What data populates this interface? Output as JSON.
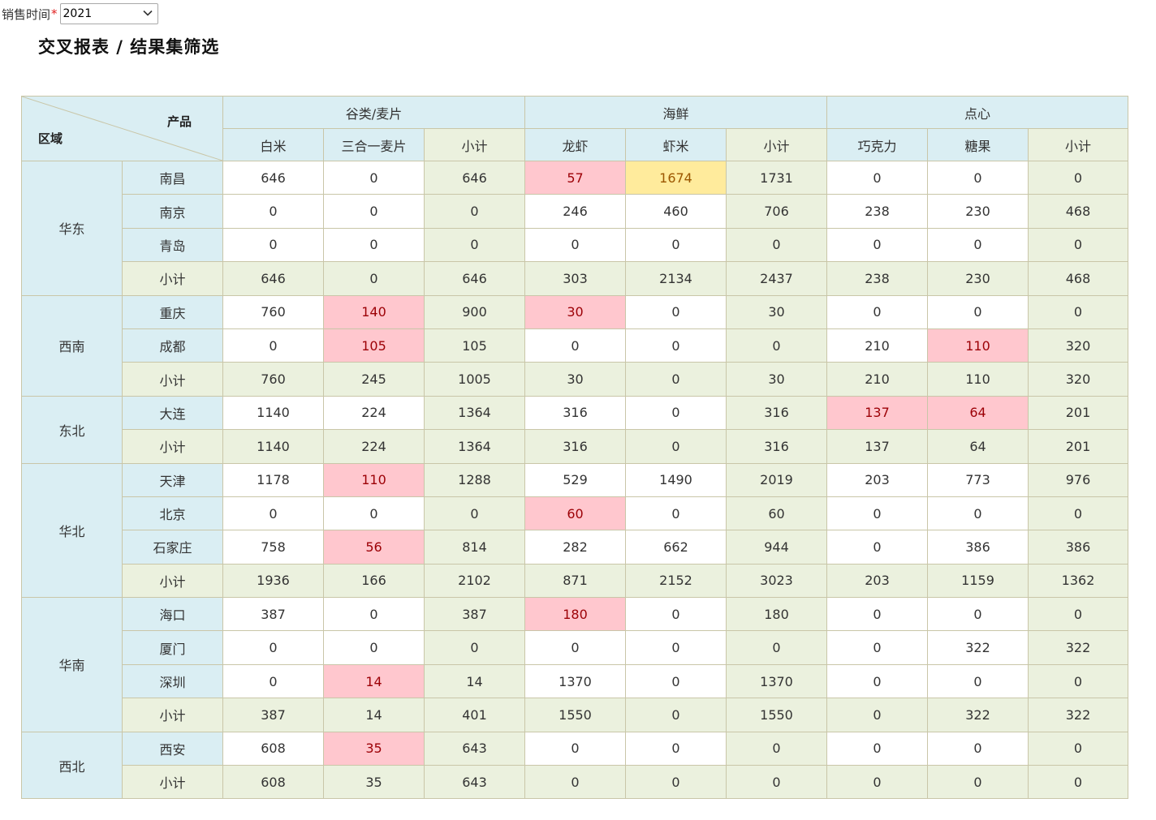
{
  "filter": {
    "label": "销售时间",
    "required_mark": "*",
    "value": "2021"
  },
  "title": "交叉报表 / 结果集筛选",
  "colors": {
    "header_bg": "#daeef3",
    "subtotal_bg": "#ebf1de",
    "highlight_pink": "#ffc7ce",
    "highlight_yellow": "#ffeb9c",
    "border": "#c9c6a8"
  },
  "table": {
    "corner": {
      "product_label": "产品",
      "region_label": "区域"
    },
    "categories": [
      {
        "name": "谷类/麦片",
        "products": [
          "白米",
          "三合一麦片",
          "小计"
        ]
      },
      {
        "name": "海鲜",
        "products": [
          "龙虾",
          "虾米",
          "小计"
        ]
      },
      {
        "name": "点心",
        "products": [
          "巧克力",
          "糖果",
          "小计"
        ]
      }
    ],
    "regions": [
      {
        "name": "华东",
        "rows": [
          {
            "city": "南昌",
            "subtotal": false,
            "values": [
              646,
              0,
              646,
              57,
              1674,
              1731,
              0,
              0,
              0
            ],
            "highlights": {
              "3": "pink",
              "4": "yellow"
            }
          },
          {
            "city": "南京",
            "subtotal": false,
            "values": [
              0,
              0,
              0,
              246,
              460,
              706,
              238,
              230,
              468
            ]
          },
          {
            "city": "青岛",
            "subtotal": false,
            "values": [
              0,
              0,
              0,
              0,
              0,
              0,
              0,
              0,
              0
            ]
          },
          {
            "city": "小计",
            "subtotal": true,
            "values": [
              646,
              0,
              646,
              303,
              2134,
              2437,
              238,
              230,
              468
            ]
          }
        ]
      },
      {
        "name": "西南",
        "rows": [
          {
            "city": "重庆",
            "subtotal": false,
            "values": [
              760,
              140,
              900,
              30,
              0,
              30,
              0,
              0,
              0
            ],
            "highlights": {
              "1": "pink",
              "3": "pink"
            }
          },
          {
            "city": "成都",
            "subtotal": false,
            "values": [
              0,
              105,
              105,
              0,
              0,
              0,
              210,
              110,
              320
            ],
            "highlights": {
              "1": "pink",
              "7": "pink"
            }
          },
          {
            "city": "小计",
            "subtotal": true,
            "values": [
              760,
              245,
              1005,
              30,
              0,
              30,
              210,
              110,
              320
            ]
          }
        ]
      },
      {
        "name": "东北",
        "rows": [
          {
            "city": "大连",
            "subtotal": false,
            "values": [
              1140,
              224,
              1364,
              316,
              0,
              316,
              137,
              64,
              201
            ],
            "highlights": {
              "6": "pink",
              "7": "pink"
            }
          },
          {
            "city": "小计",
            "subtotal": true,
            "values": [
              1140,
              224,
              1364,
              316,
              0,
              316,
              137,
              64,
              201
            ]
          }
        ]
      },
      {
        "name": "华北",
        "rows": [
          {
            "city": "天津",
            "subtotal": false,
            "values": [
              1178,
              110,
              1288,
              529,
              1490,
              2019,
              203,
              773,
              976
            ],
            "highlights": {
              "1": "pink"
            }
          },
          {
            "city": "北京",
            "subtotal": false,
            "values": [
              0,
              0,
              0,
              60,
              0,
              60,
              0,
              0,
              0
            ],
            "highlights": {
              "3": "pink"
            }
          },
          {
            "city": "石家庄",
            "subtotal": false,
            "values": [
              758,
              56,
              814,
              282,
              662,
              944,
              0,
              386,
              386
            ],
            "highlights": {
              "1": "pink"
            }
          },
          {
            "city": "小计",
            "subtotal": true,
            "values": [
              1936,
              166,
              2102,
              871,
              2152,
              3023,
              203,
              1159,
              1362
            ]
          }
        ]
      },
      {
        "name": "华南",
        "rows": [
          {
            "city": "海口",
            "subtotal": false,
            "values": [
              387,
              0,
              387,
              180,
              0,
              180,
              0,
              0,
              0
            ],
            "highlights": {
              "3": "pink"
            }
          },
          {
            "city": "厦门",
            "subtotal": false,
            "values": [
              0,
              0,
              0,
              0,
              0,
              0,
              0,
              322,
              322
            ]
          },
          {
            "city": "深圳",
            "subtotal": false,
            "values": [
              0,
              14,
              14,
              1370,
              0,
              1370,
              0,
              0,
              0
            ],
            "highlights": {
              "1": "pink"
            }
          },
          {
            "city": "小计",
            "subtotal": true,
            "values": [
              387,
              14,
              401,
              1550,
              0,
              1550,
              0,
              322,
              322
            ]
          }
        ]
      },
      {
        "name": "西北",
        "rows": [
          {
            "city": "西安",
            "subtotal": false,
            "values": [
              608,
              35,
              643,
              0,
              0,
              0,
              0,
              0,
              0
            ],
            "highlights": {
              "1": "pink"
            }
          },
          {
            "city": "小计",
            "subtotal": true,
            "values": [
              608,
              35,
              643,
              0,
              0,
              0,
              0,
              0,
              0
            ]
          }
        ]
      }
    ]
  }
}
